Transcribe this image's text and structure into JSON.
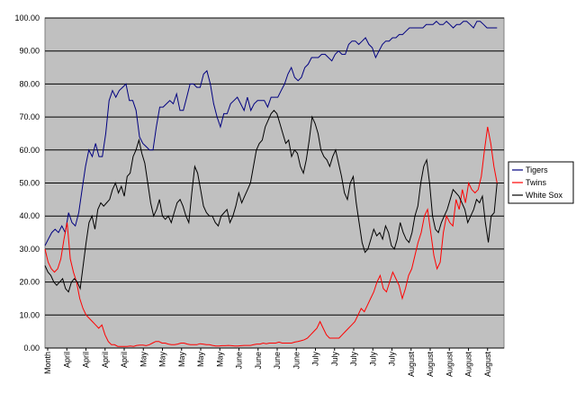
{
  "chart_data": {
    "type": "line",
    "title": "",
    "xlabel": "",
    "ylabel": "",
    "ylim": [
      0,
      100
    ],
    "y_ticks": [
      "0.00",
      "10.00",
      "20.00",
      "30.00",
      "40.00",
      "50.00",
      "60.00",
      "70.00",
      "80.00",
      "90.00",
      "100.00"
    ],
    "x_tick_labels": [
      "Month",
      "April",
      "April",
      "April",
      "April",
      "May",
      "May",
      "May",
      "May",
      "May",
      "June",
      "June",
      "June",
      "June",
      "July",
      "July",
      "July",
      "July",
      "July",
      "August",
      "August",
      "August",
      "August",
      "August"
    ],
    "grid": "horizontal",
    "legend_position": "right",
    "background_color": "#c0c0c0",
    "series": [
      {
        "name": "Tigers",
        "color": "#000080",
        "values": [
          31,
          33,
          35,
          36,
          35,
          37,
          35,
          41,
          38,
          37,
          41,
          48,
          55,
          60,
          58,
          62,
          58,
          58,
          65,
          75,
          78,
          76,
          78,
          79,
          80,
          75,
          75,
          72,
          64,
          62,
          61,
          60,
          60,
          67,
          73,
          73,
          74,
          75,
          74,
          77,
          72,
          72,
          76,
          80,
          80,
          79,
          79,
          83,
          84,
          80,
          74,
          70,
          67,
          71,
          71,
          74,
          75,
          76,
          74,
          72,
          76,
          72,
          74,
          75,
          75,
          75,
          73,
          76,
          76,
          76,
          78,
          80,
          83,
          85,
          82,
          81,
          82,
          85,
          86,
          88,
          88,
          88,
          89,
          89,
          88,
          87,
          89,
          90,
          89,
          89,
          92,
          93,
          93,
          92,
          93,
          94,
          92,
          91,
          88,
          90,
          92,
          93,
          93,
          94,
          94,
          95,
          95,
          96,
          97,
          97,
          97,
          97,
          97,
          98,
          98,
          98,
          99,
          98,
          98,
          99,
          98,
          97,
          98,
          98,
          99,
          99,
          98,
          97,
          99,
          99,
          98,
          97,
          97,
          97,
          97
        ]
      },
      {
        "name": "Twins",
        "color": "#ff0000",
        "values": [
          30,
          26,
          24,
          23,
          24,
          27,
          33,
          38,
          27,
          23,
          20,
          15,
          12,
          10,
          9,
          8,
          7,
          6,
          7,
          4,
          2,
          1,
          1,
          0.5,
          0.5,
          0.5,
          0.5,
          0.6,
          0.5,
          0.8,
          0.9,
          0.9,
          0.7,
          1,
          1.5,
          2,
          2,
          1.5,
          1.5,
          1.2,
          1,
          1,
          1.2,
          1.5,
          1.5,
          1.2,
          1,
          1,
          1,
          1.3,
          1.2,
          1,
          1,
          0.8,
          0.6,
          0.6,
          0.7,
          0.7,
          0.8,
          0.7,
          0.6,
          0.6,
          0.7,
          0.8,
          0.8,
          0.8,
          1,
          1.2,
          1.2,
          1.5,
          1.3,
          1.5,
          1.5,
          1.5,
          1.8,
          1.5,
          1.5,
          1.5,
          1.5,
          1.8,
          2,
          2.2,
          2.5,
          3,
          4,
          5,
          6,
          8,
          6,
          4,
          3,
          3,
          3,
          3,
          4,
          5,
          6,
          7,
          8,
          10,
          12,
          11,
          13,
          15,
          17,
          20,
          22,
          18,
          17,
          20,
          23,
          21,
          19,
          15,
          18,
          22,
          24,
          28,
          32,
          35,
          40,
          42,
          35,
          28,
          24,
          26,
          35,
          40,
          38,
          37,
          45,
          42,
          48,
          44,
          50,
          48,
          47,
          48,
          52,
          60,
          67,
          62,
          55,
          50
        ]
      },
      {
        "name": "White Sox",
        "color": "#000000",
        "values": [
          25,
          23,
          22,
          20,
          19,
          20,
          21,
          18,
          17,
          20,
          21,
          20,
          18,
          25,
          32,
          38,
          40,
          36,
          42,
          44,
          43,
          44,
          45,
          48,
          50,
          47,
          49,
          46,
          52,
          53,
          58,
          60,
          63,
          59,
          56,
          50,
          44,
          40,
          42,
          45,
          40,
          39,
          40,
          38,
          41,
          44,
          45,
          43,
          40,
          38,
          47,
          55,
          53,
          48,
          43,
          41,
          40,
          40,
          38,
          37,
          40,
          41,
          42,
          38,
          40,
          43,
          47,
          44,
          46,
          48,
          50,
          55,
          60,
          62,
          63,
          67,
          69,
          71,
          72,
          71,
          68,
          65,
          62,
          63,
          58,
          60,
          59,
          55,
          53,
          57,
          63,
          70,
          68,
          65,
          60,
          58,
          57,
          55,
          58,
          60,
          56,
          52,
          47,
          45,
          50,
          52,
          44,
          38,
          32,
          29,
          30,
          33,
          36,
          34,
          35,
          33,
          37,
          35,
          31,
          30,
          33,
          38,
          35,
          33,
          32,
          35,
          40,
          43,
          50,
          55,
          57,
          50,
          40,
          36,
          35,
          38,
          40,
          42,
          45,
          48,
          47,
          46,
          44,
          42,
          38,
          40,
          42,
          45,
          44,
          46,
          38,
          32,
          40,
          41,
          50
        ]
      }
    ]
  }
}
